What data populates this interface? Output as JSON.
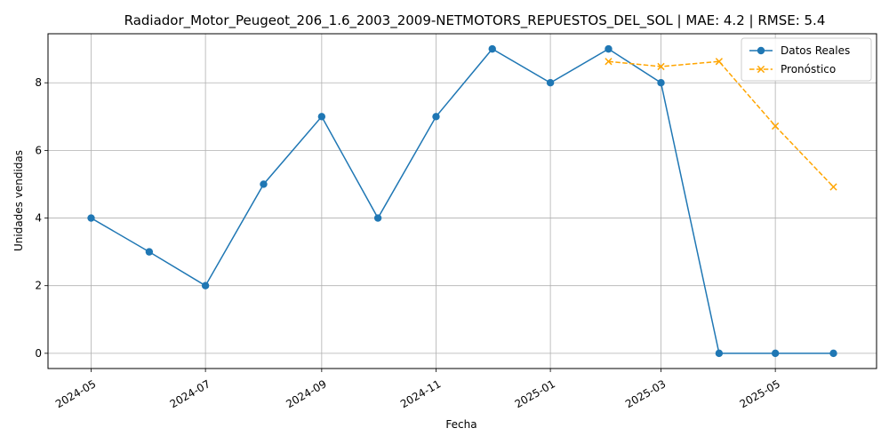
{
  "chart_data": {
    "type": "line",
    "title": "Radiador_Motor_Peugeot_206_1.6_2003_2009-NETMOTORS_REPUESTOS_DEL_SOL | MAE: 4.2 | RMSE: 5.4",
    "xlabel": "Fecha",
    "ylabel": "Unidades vendidas",
    "x_ticks": [
      "2024-05",
      "2024-07",
      "2024-09",
      "2024-11",
      "2025-01",
      "2025-03",
      "2025-05"
    ],
    "y_ticks": [
      "0",
      "2",
      "4",
      "6",
      "8"
    ],
    "ylim": [
      -0.45,
      9.45
    ],
    "xlim": [
      "2024-04-08",
      "2025-06-24"
    ],
    "grid": true,
    "legend_position": "top-right",
    "series": [
      {
        "name": "Datos Reales",
        "color": "#1f77b4",
        "marker": "circle",
        "linestyle": "solid",
        "x": [
          "2024-05-01",
          "2024-06-01",
          "2024-07-01",
          "2024-08-01",
          "2024-09-01",
          "2024-10-01",
          "2024-11-01",
          "2024-12-01",
          "2025-01-01",
          "2025-02-01",
          "2025-03-01",
          "2025-04-01",
          "2025-05-01",
          "2025-06-01"
        ],
        "values": [
          4,
          3,
          2,
          5,
          7,
          4,
          7,
          9,
          8,
          9,
          8,
          0,
          0,
          0
        ]
      },
      {
        "name": "Pronóstico",
        "color": "#ffa500",
        "marker": "x",
        "linestyle": "dashed",
        "x": [
          "2025-02-01",
          "2025-03-01",
          "2025-04-01",
          "2025-05-01",
          "2025-06-01"
        ],
        "values": [
          8.63,
          8.48,
          8.63,
          6.72,
          4.92
        ]
      }
    ]
  }
}
